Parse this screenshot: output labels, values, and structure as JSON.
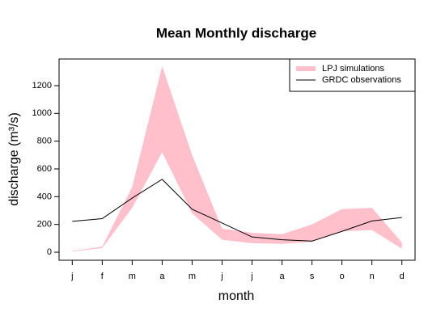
{
  "chart_data": {
    "type": "band-line",
    "title": "Mean Monthly discharge",
    "xlabel": "month",
    "ylabel": "discharge (m³/s)",
    "categories": [
      "j",
      "f",
      "m",
      "a",
      "m",
      "j",
      "j",
      "a",
      "s",
      "o",
      "n",
      "d"
    ],
    "series": [
      {
        "name": "LPJ simulations",
        "color": "#ffc0cb",
        "upper": [
          10,
          40,
          470,
          1340,
          700,
          170,
          140,
          130,
          200,
          310,
          320,
          70
        ],
        "lower": [
          5,
          30,
          320,
          720,
          280,
          90,
          65,
          60,
          75,
          150,
          160,
          25
        ]
      },
      {
        "name": "GRDC observations",
        "color": "#000000",
        "values": [
          222,
          242,
          390,
          525,
          310,
          210,
          110,
          90,
          80,
          150,
          225,
          250
        ]
      }
    ],
    "ylim": [
      -58,
      1392
    ],
    "yticks": [
      0,
      200,
      400,
      600,
      800,
      1000,
      1200
    ],
    "legend": "top-right"
  }
}
